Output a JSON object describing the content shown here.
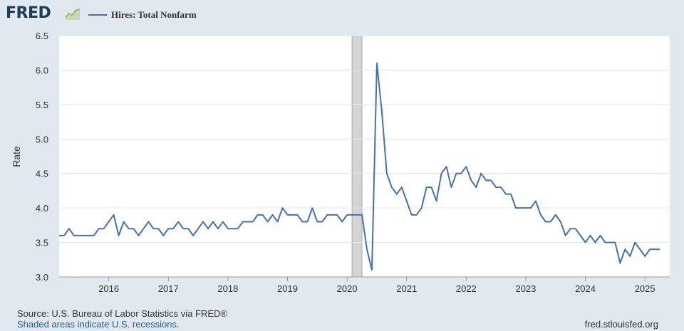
{
  "header": {
    "logo_text": "FRED",
    "logo_icon": "chart-line-icon",
    "legend_label": "Hires: Total Nonfarm",
    "legend_color": "#4572a7"
  },
  "footer": {
    "source": "Source: U.S. Bureau of Labor Statistics via FRED®",
    "recession_note": "Shaded areas indicate U.S. recessions.",
    "site": "fred.stlouisfed.org"
  },
  "chart_data": {
    "type": "line",
    "title": "",
    "xlabel": "",
    "ylabel": "Rate",
    "ylim": [
      3.0,
      6.5
    ],
    "yticks": [
      3.0,
      3.5,
      4.0,
      4.5,
      5.0,
      5.5,
      6.0,
      6.5
    ],
    "ytick_labels": [
      "3.0",
      "3.5",
      "4.0",
      "4.5",
      "5.0",
      "5.5",
      "6.0",
      "6.5"
    ],
    "xlim": [
      "2015-03",
      "2025-06"
    ],
    "xticks": [
      "2016-01",
      "2017-01",
      "2018-01",
      "2019-01",
      "2020-01",
      "2021-01",
      "2022-01",
      "2023-01",
      "2024-01",
      "2025-01"
    ],
    "xtick_labels": [
      "2016",
      "2017",
      "2018",
      "2019",
      "2020",
      "2021",
      "2022",
      "2023",
      "2024",
      "2025"
    ],
    "grid": true,
    "line_color": "#4572a7",
    "recession_color": "#d4d4d4",
    "recessions": [
      {
        "start": "2020-02",
        "end": "2020-04"
      }
    ],
    "series": [
      {
        "name": "Hires: Total Nonfarm",
        "start_month": "2015-03",
        "values": [
          3.6,
          3.6,
          3.7,
          3.6,
          3.6,
          3.6,
          3.6,
          3.6,
          3.7,
          3.7,
          3.8,
          3.9,
          3.6,
          3.8,
          3.7,
          3.7,
          3.6,
          3.7,
          3.8,
          3.7,
          3.7,
          3.6,
          3.7,
          3.7,
          3.8,
          3.7,
          3.7,
          3.6,
          3.7,
          3.8,
          3.7,
          3.8,
          3.7,
          3.8,
          3.7,
          3.7,
          3.7,
          3.8,
          3.8,
          3.8,
          3.9,
          3.9,
          3.8,
          3.9,
          3.8,
          4.0,
          3.9,
          3.9,
          3.9,
          3.8,
          3.8,
          4.0,
          3.8,
          3.8,
          3.9,
          3.9,
          3.9,
          3.8,
          3.9,
          3.9,
          3.9,
          3.9,
          3.4,
          3.1,
          6.1,
          5.4,
          4.5,
          4.3,
          4.2,
          4.3,
          4.1,
          3.9,
          3.9,
          4.0,
          4.3,
          4.3,
          4.1,
          4.5,
          4.6,
          4.3,
          4.5,
          4.5,
          4.6,
          4.4,
          4.3,
          4.5,
          4.4,
          4.4,
          4.3,
          4.3,
          4.2,
          4.2,
          4.0,
          4.0,
          4.0,
          4.0,
          4.1,
          3.9,
          3.8,
          3.8,
          3.9,
          3.8,
          3.6,
          3.7,
          3.7,
          3.6,
          3.5,
          3.6,
          3.5,
          3.6,
          3.5,
          3.5,
          3.5,
          3.2,
          3.4,
          3.3,
          3.5,
          3.4,
          3.3,
          3.4,
          3.4,
          3.4
        ]
      }
    ]
  }
}
